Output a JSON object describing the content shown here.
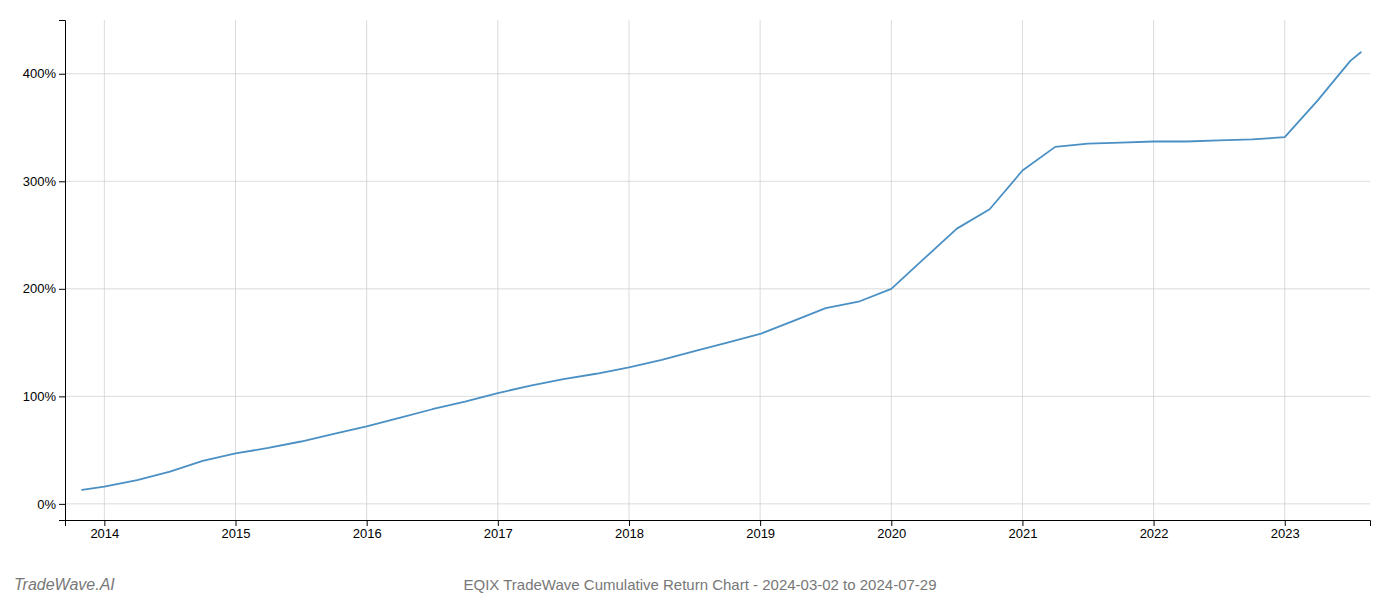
{
  "chart_data": {
    "type": "line",
    "title": "EQIX TradeWave Cumulative Return Chart - 2024-03-02 to 2024-07-29",
    "annotations": [
      "TradeWave.AI"
    ],
    "color": "#4a90c4",
    "x": [
      2013.83,
      2014.0,
      2014.25,
      2014.5,
      2014.75,
      2015.0,
      2015.25,
      2015.5,
      2015.75,
      2016.0,
      2016.25,
      2016.5,
      2016.75,
      2017.0,
      2017.25,
      2017.5,
      2017.75,
      2018.0,
      2018.25,
      2018.5,
      2018.75,
      2019.0,
      2019.25,
      2019.5,
      2019.75,
      2020.0,
      2020.25,
      2020.5,
      2020.75,
      2021.0,
      2021.25,
      2021.5,
      2021.75,
      2022.0,
      2022.25,
      2022.5,
      2022.75,
      2023.0,
      2023.25,
      2023.5,
      2023.58
    ],
    "values": [
      13,
      16,
      22,
      30,
      40,
      47,
      52,
      58,
      65,
      72,
      80,
      88,
      95,
      103,
      110,
      116,
      121,
      127,
      134,
      142,
      150,
      158,
      170,
      182,
      188,
      200,
      228,
      256,
      274,
      310,
      332,
      335,
      336,
      337,
      337,
      338,
      339,
      341,
      375,
      412,
      420
    ],
    "xlim": [
      2013.7,
      2023.65
    ],
    "ylim": [
      -15,
      450
    ],
    "xticks": [
      2014,
      2015,
      2016,
      2017,
      2018,
      2019,
      2020,
      2021,
      2022,
      2023
    ],
    "yticks": [
      {
        "value": 0,
        "label": "0%"
      },
      {
        "value": 100,
        "label": "100%"
      },
      {
        "value": 200,
        "label": "200%"
      },
      {
        "value": 300,
        "label": "300%"
      },
      {
        "value": 400,
        "label": "400%"
      }
    ],
    "grid": true
  }
}
